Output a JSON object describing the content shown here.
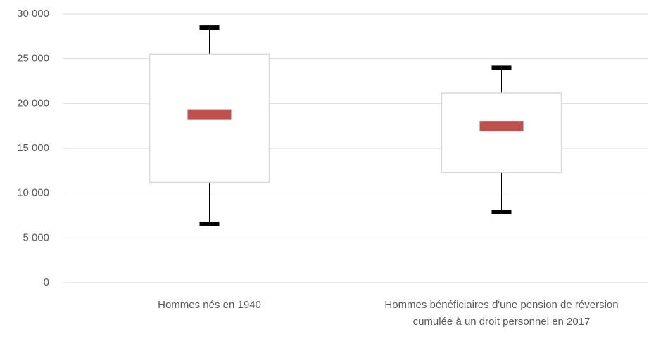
{
  "chart_data": {
    "type": "box",
    "categories": [
      "Hommes nés en 1940",
      "Hommes bénéficiaires d'une pension de réversion cumulée à un droit personnel en 2017"
    ],
    "boxes": [
      {
        "min": 6600,
        "q1": 11200,
        "median": 18800,
        "q3": 25500,
        "max": 28500
      },
      {
        "min": 7900,
        "q1": 12300,
        "median": 17500,
        "q3": 21200,
        "max": 24000
      }
    ],
    "box_color": "#d9d9d9",
    "median_color": "#c0504d",
    "whisker_color": "#000000",
    "ylim": [
      0,
      30000
    ],
    "yticks": [
      0,
      {
        "value": 5000,
        "label": "5 000"
      },
      {
        "value": 10000,
        "label": "10 000"
      },
      {
        "value": 15000,
        "label": "15 000"
      },
      {
        "value": 20000,
        "label": "20 000"
      },
      {
        "value": 25000,
        "label": "25 000"
      },
      {
        "value": 30000,
        "label": "30 000"
      }
    ],
    "grid": true
  }
}
